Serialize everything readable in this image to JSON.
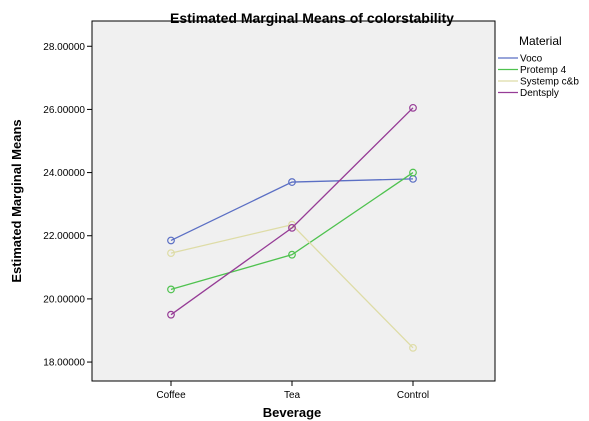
{
  "chart_data": {
    "type": "line",
    "title": "Estimated Marginal Means of colorstability",
    "xlabel": "Beverage",
    "ylabel": "Estimated Marginal Means",
    "categories": [
      "Coffee",
      "Tea",
      "Control"
    ],
    "y_ticks": [
      "18.00000",
      "20.00000",
      "22.00000",
      "24.00000",
      "26.00000",
      "28.00000"
    ],
    "ylim": [
      17.4,
      28.8
    ],
    "grid": false,
    "legend_title": "Material",
    "legend_position": "right",
    "series": [
      {
        "name": "Voco",
        "color": "#5b6fc4",
        "values": [
          21.85,
          23.7,
          23.8
        ]
      },
      {
        "name": "Protemp 4",
        "color": "#4fc24f",
        "values": [
          20.3,
          21.4,
          24.0
        ]
      },
      {
        "name": "Systemp c&b",
        "color": "#dedca6",
        "values": [
          21.45,
          22.35,
          18.45
        ]
      },
      {
        "name": "Dentsply",
        "color": "#963c96",
        "values": [
          19.5,
          22.25,
          26.05
        ]
      }
    ]
  }
}
